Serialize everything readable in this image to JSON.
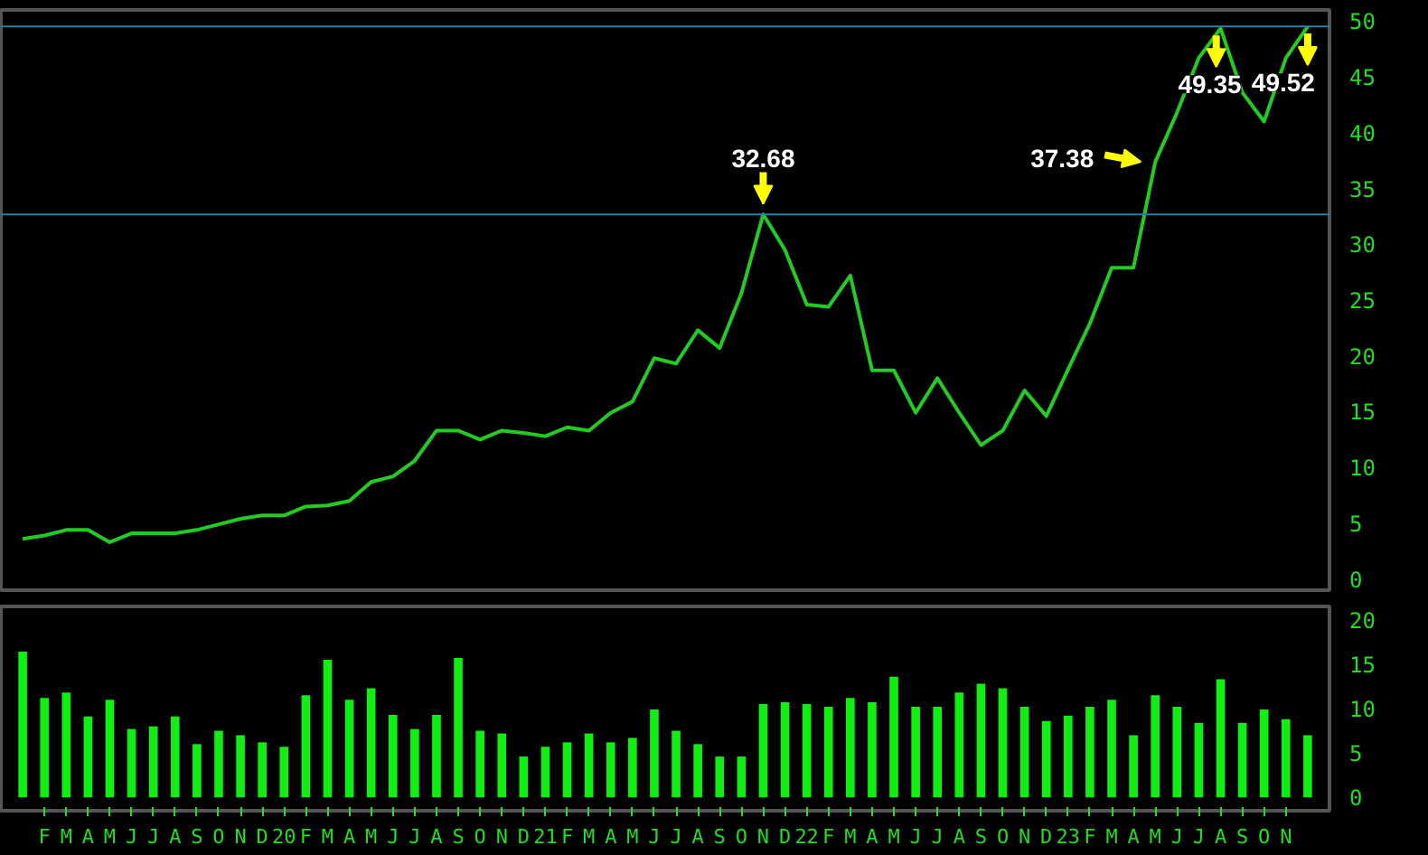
{
  "chart_data": [
    {
      "type": "line",
      "x": [
        "2019-01",
        "2019-02",
        "2019-03",
        "2019-04",
        "2019-05",
        "2019-06",
        "2019-07",
        "2019-08",
        "2019-09",
        "2019-10",
        "2019-11",
        "2019-12",
        "2020-01",
        "2020-02",
        "2020-03",
        "2020-04",
        "2020-05",
        "2020-06",
        "2020-07",
        "2020-08",
        "2020-09",
        "2020-10",
        "2020-11",
        "2020-12",
        "2021-01",
        "2021-02",
        "2021-03",
        "2021-04",
        "2021-05",
        "2021-06",
        "2021-07",
        "2021-08",
        "2021-09",
        "2021-10",
        "2021-11",
        "2021-12",
        "2022-01",
        "2022-02",
        "2022-03",
        "2022-04",
        "2022-05",
        "2022-06",
        "2022-07",
        "2022-08",
        "2022-09",
        "2022-10",
        "2022-11",
        "2022-12",
        "2023-01",
        "2023-02",
        "2023-03",
        "2023-04",
        "2023-05",
        "2023-06",
        "2023-07",
        "2023-08",
        "2023-09",
        "2023-10",
        "2023-11",
        "2023-12"
      ],
      "series": [
        {
          "color": "#22cc22",
          "values": [
            3.6,
            3.9,
            4.4,
            4.4,
            3.3,
            4.1,
            4.1,
            4.1,
            4.4,
            4.9,
            5.4,
            5.7,
            5.7,
            6.5,
            6.6,
            7.0,
            8.7,
            9.2,
            10.6,
            13.3,
            13.3,
            12.5,
            13.3,
            13.1,
            12.8,
            13.6,
            13.3,
            14.9,
            15.9,
            19.8,
            19.3,
            22.3,
            20.7,
            25.6,
            32.68,
            29.5,
            24.6,
            24.4,
            27.2,
            18.7,
            18.7,
            14.9,
            18.0,
            14.9,
            12.0,
            13.3,
            16.9,
            14.6,
            18.8,
            22.9,
            27.9,
            27.9,
            37.38,
            41.8,
            46.7,
            49.35,
            43.6,
            41.0,
            46.7,
            49.52
          ]
        }
      ],
      "xlim": [
        "2018-12",
        "2024-01"
      ],
      "ylim": [
        -1,
        51
      ],
      "yticks": [
        0,
        5,
        10,
        15,
        20,
        25,
        30,
        35,
        40,
        45,
        50
      ],
      "tick_labels": "y",
      "grid": false,
      "ref_lines": [
        {
          "axis": "y",
          "value": 32.68,
          "color": "#2a7fa8"
        },
        {
          "axis": "y",
          "value": 49.52,
          "color": "#2a7fa8"
        }
      ],
      "annotations": [
        {
          "text": "32.68",
          "x": "2021-11",
          "y": 32.68
        },
        {
          "text": "37.38",
          "x": "2023-05",
          "y": 37.38
        },
        {
          "text": "49.35",
          "x": "2023-08",
          "y": 49.35
        },
        {
          "text": "49.52",
          "x": "2023-12",
          "y": 49.52
        }
      ]
    },
    {
      "type": "bar",
      "x": [
        "2019-01",
        "2019-02",
        "2019-03",
        "2019-04",
        "2019-05",
        "2019-06",
        "2019-07",
        "2019-08",
        "2019-09",
        "2019-10",
        "2019-11",
        "2019-12",
        "2020-01",
        "2020-02",
        "2020-03",
        "2020-04",
        "2020-05",
        "2020-06",
        "2020-07",
        "2020-08",
        "2020-09",
        "2020-10",
        "2020-11",
        "2020-12",
        "2021-01",
        "2021-02",
        "2021-03",
        "2021-04",
        "2021-05",
        "2021-06",
        "2021-07",
        "2021-08",
        "2021-09",
        "2021-10",
        "2021-11",
        "2021-12",
        "2022-01",
        "2022-02",
        "2022-03",
        "2022-04",
        "2022-05",
        "2022-06",
        "2022-07",
        "2022-08",
        "2022-09",
        "2022-10",
        "2022-11",
        "2022-12",
        "2023-01",
        "2023-02",
        "2023-03",
        "2023-04",
        "2023-05",
        "2023-06",
        "2023-07",
        "2023-08",
        "2023-09",
        "2023-10",
        "2023-11",
        "2023-12"
      ],
      "series": [
        {
          "color": "#11ee11",
          "values": [
            16.4,
            11.2,
            11.8,
            9.1,
            11.0,
            7.7,
            8.0,
            9.1,
            6.0,
            7.5,
            7.0,
            6.2,
            5.7,
            11.5,
            15.5,
            11.0,
            12.3,
            9.3,
            7.7,
            9.3,
            15.7,
            7.5,
            7.2,
            4.6,
            5.7,
            6.2,
            7.2,
            6.2,
            6.7,
            9.9,
            7.5,
            6.0,
            4.6,
            4.6,
            10.5,
            10.7,
            10.5,
            10.2,
            11.2,
            10.7,
            13.6,
            10.2,
            10.2,
            11.8,
            12.8,
            12.3,
            10.2,
            8.6,
            9.2,
            10.2,
            11.0,
            7.0,
            11.5,
            10.2,
            8.4,
            13.3,
            8.4,
            9.9,
            8.8,
            7.0
          ]
        }
      ],
      "xlim": [
        "2018-12",
        "2024-01"
      ],
      "ylim": [
        -1.5,
        21.5
      ],
      "yticks": [
        0,
        5,
        10,
        15,
        20
      ],
      "grid": false,
      "xticks": [
        {
          "value": "2019-02",
          "label": "F"
        },
        {
          "value": "2019-03",
          "label": "M"
        },
        {
          "value": "2019-04",
          "label": "A"
        },
        {
          "value": "2019-05",
          "label": "M"
        },
        {
          "value": "2019-06",
          "label": "J"
        },
        {
          "value": "2019-07",
          "label": "J"
        },
        {
          "value": "2019-08",
          "label": "A"
        },
        {
          "value": "2019-09",
          "label": "S"
        },
        {
          "value": "2019-10",
          "label": "O"
        },
        {
          "value": "2019-11",
          "label": "N"
        },
        {
          "value": "2019-12",
          "label": "D"
        },
        {
          "value": "2020-01",
          "label": "20"
        },
        {
          "value": "2020-02",
          "label": "F"
        },
        {
          "value": "2020-03",
          "label": "M"
        },
        {
          "value": "2020-04",
          "label": "A"
        },
        {
          "value": "2020-05",
          "label": "M"
        },
        {
          "value": "2020-06",
          "label": "J"
        },
        {
          "value": "2020-07",
          "label": "J"
        },
        {
          "value": "2020-08",
          "label": "A"
        },
        {
          "value": "2020-09",
          "label": "S"
        },
        {
          "value": "2020-10",
          "label": "O"
        },
        {
          "value": "2020-11",
          "label": "N"
        },
        {
          "value": "2020-12",
          "label": "D"
        },
        {
          "value": "2021-01",
          "label": "21"
        },
        {
          "value": "2021-02",
          "label": "F"
        },
        {
          "value": "2021-03",
          "label": "M"
        },
        {
          "value": "2021-04",
          "label": "A"
        },
        {
          "value": "2021-05",
          "label": "M"
        },
        {
          "value": "2021-06",
          "label": "J"
        },
        {
          "value": "2021-07",
          "label": "J"
        },
        {
          "value": "2021-08",
          "label": "A"
        },
        {
          "value": "2021-09",
          "label": "S"
        },
        {
          "value": "2021-10",
          "label": "O"
        },
        {
          "value": "2021-11",
          "label": "N"
        },
        {
          "value": "2021-12",
          "label": "D"
        },
        {
          "value": "2022-01",
          "label": "22"
        },
        {
          "value": "2022-02",
          "label": "F"
        },
        {
          "value": "2022-03",
          "label": "M"
        },
        {
          "value": "2022-04",
          "label": "A"
        },
        {
          "value": "2022-05",
          "label": "M"
        },
        {
          "value": "2022-06",
          "label": "J"
        },
        {
          "value": "2022-07",
          "label": "J"
        },
        {
          "value": "2022-08",
          "label": "A"
        },
        {
          "value": "2022-09",
          "label": "S"
        },
        {
          "value": "2022-10",
          "label": "O"
        },
        {
          "value": "2022-11",
          "label": "N"
        },
        {
          "value": "2022-12",
          "label": "D"
        },
        {
          "value": "2023-01",
          "label": "23"
        },
        {
          "value": "2023-02",
          "label": "F"
        },
        {
          "value": "2023-03",
          "label": "M"
        },
        {
          "value": "2023-04",
          "label": "A"
        },
        {
          "value": "2023-05",
          "label": "M"
        },
        {
          "value": "2023-06",
          "label": "J"
        },
        {
          "value": "2023-07",
          "label": "J"
        },
        {
          "value": "2023-08",
          "label": "A"
        },
        {
          "value": "2023-09",
          "label": "S"
        },
        {
          "value": "2023-10",
          "label": "O"
        },
        {
          "value": "2023-11",
          "label": "N"
        }
      ]
    }
  ]
}
